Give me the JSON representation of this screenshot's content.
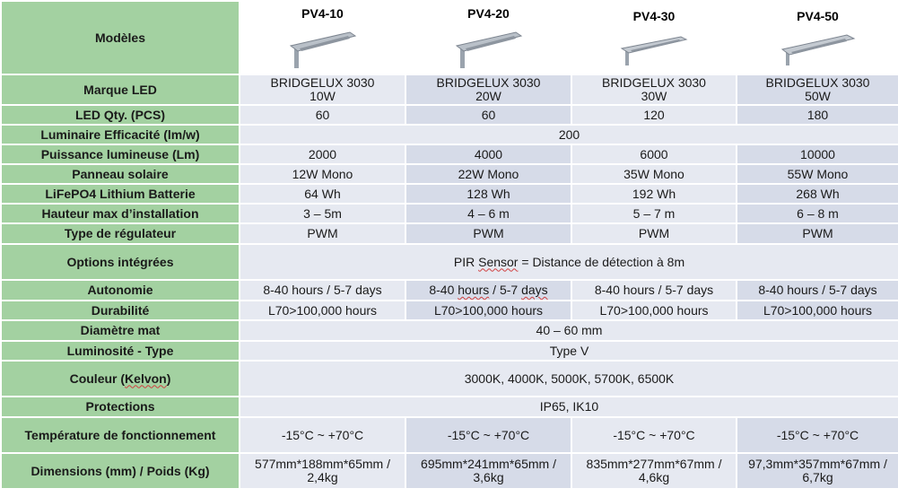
{
  "table": {
    "header_label": "Modèles",
    "models": [
      "PV4-10",
      "PV4-20",
      "PV4-30",
      "PV4-50"
    ],
    "rows": [
      {
        "label": "Marque LED",
        "height": 34,
        "values": [
          "BRIDGELUX 3030\n10W",
          "BRIDGELUX 3030\n20W",
          "BRIDGELUX 3030\n30W",
          "BRIDGELUX 3030\n50W"
        ]
      },
      {
        "label": "LED Qty. (PCS)",
        "height": 22,
        "values": [
          "60",
          "60",
          "120",
          "180"
        ]
      },
      {
        "label": "Luminaire Efficacité (lm/w)",
        "height": 22,
        "span": "200"
      },
      {
        "label": "Puissance lumineuse (Lm)",
        "height": 22,
        "values": [
          "2000",
          "4000",
          "6000",
          "10000"
        ]
      },
      {
        "label": "Panneau solaire",
        "height": 22,
        "values": [
          "12W Mono",
          "22W Mono",
          "35W Mono",
          "55W Mono"
        ]
      },
      {
        "label": "LiFePO4 Lithium Batterie",
        "height": 22,
        "values": [
          "64 Wh",
          "128 Wh",
          "192 Wh",
          "268 Wh"
        ]
      },
      {
        "label": "Hauteur max d’installation",
        "height": 22,
        "values": [
          "3 – 5m",
          "4 – 6 m",
          "5 – 7 m",
          "6 – 8 m"
        ]
      },
      {
        "label": "Type de régulateur",
        "height": 23,
        "values": [
          "PWM",
          "PWM",
          "PWM",
          "PWM"
        ]
      },
      {
        "label": "Options intégrées",
        "height": 40,
        "span": "PIR Sensor = Distance de détection à 8m"
      },
      {
        "label": "Autonomie",
        "height": 23,
        "values": [
          "8-40 hours / 5-7 days",
          "8-40 hours / 5-7 days",
          "8-40 hours / 5-7 days",
          "8-40 hours / 5-7 days"
        ]
      },
      {
        "label": "Durabilité",
        "height": 22,
        "values": [
          "L70>100,000 hours",
          "L70>100,000 hours",
          "L70>100,000 hours",
          "L70>100,000 hours"
        ]
      },
      {
        "label": "Diamètre mat",
        "height": 23,
        "span": "40 – 60 mm"
      },
      {
        "label": "Luminosité - Type",
        "height": 22,
        "span": "Type V"
      },
      {
        "label": "Couleur (Kelvon)",
        "height": 40,
        "span": "3000K, 4000K, 5000K, 5700K, 6500K"
      },
      {
        "label": "Protections",
        "height": 23,
        "span": "IP65, IK10"
      },
      {
        "label": "Température de fonctionnement",
        "height": 40,
        "values": [
          "-15°C ~ +70°C",
          "-15°C ~ +70°C",
          "-15°C ~ +70°C",
          "-15°C ~ +70°C"
        ]
      },
      {
        "label": "Dimensions (mm) / Poids (Kg)",
        "height": 40,
        "values": [
          "577mm*188mm*65mm /\n2,4kg",
          "695mm*241mm*65mm /\n3,6kg",
          "835mm*277mm*67mm /\n4,6kg",
          "97,3mm*357mm*67mm /\n6,7kg"
        ]
      }
    ]
  }
}
